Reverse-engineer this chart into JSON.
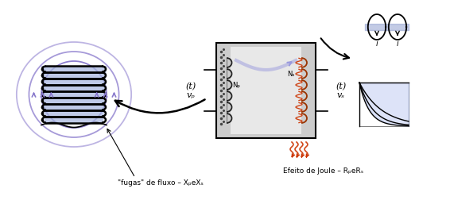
{
  "bg_color": "#ffffff",
  "text_fugas": "\"fugas\" de fluxo – XₚeXₛ",
  "text_joule": "Efeito de Joule – RₚeRₛ",
  "text_vp": "vₚ",
  "text_t1": "(t)",
  "text_vs": "vₛ",
  "text_t2": "(t)",
  "text_Np": "Nₚ",
  "text_Ns": "Nₛ",
  "text_i1": "i",
  "text_i2": "i",
  "purple": "#8878CC",
  "light_blue": "#9999cc",
  "coil_blue": "#8888bb",
  "heat_orange": "#cc3300",
  "heat_dark": "#991100"
}
